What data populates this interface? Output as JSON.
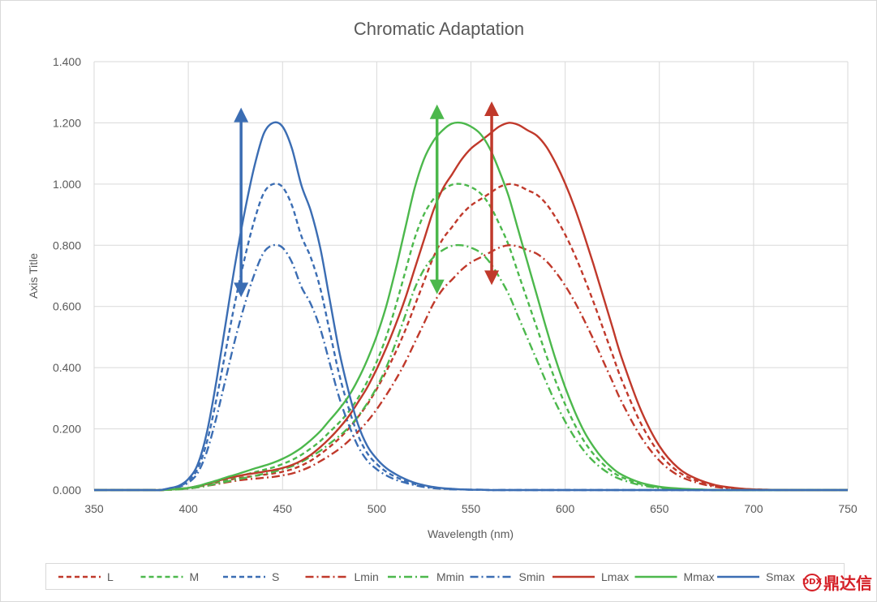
{
  "chart_data": {
    "type": "line",
    "title": "Chromatic Adaptation",
    "xlabel": "Wavelength (nm)",
    "ylabel": "Axis Title",
    "xlim": [
      350,
      750
    ],
    "ylim": [
      0,
      1.4
    ],
    "x_ticks": [
      "350",
      "400",
      "450",
      "500",
      "550",
      "600",
      "650",
      "700",
      "750"
    ],
    "y_ticks": [
      "0.000",
      "0.200",
      "0.400",
      "0.600",
      "0.800",
      "1.000",
      "1.200",
      "1.400"
    ],
    "grid": true,
    "legend_position": "bottom",
    "x": [
      350,
      360,
      370,
      380,
      385,
      390,
      395,
      400,
      405,
      410,
      415,
      420,
      425,
      430,
      435,
      440,
      445,
      450,
      455,
      460,
      465,
      470,
      475,
      480,
      485,
      490,
      495,
      500,
      505,
      510,
      515,
      520,
      525,
      530,
      535,
      540,
      545,
      550,
      555,
      560,
      565,
      570,
      575,
      580,
      585,
      590,
      595,
      600,
      605,
      610,
      615,
      620,
      625,
      630,
      640,
      650,
      660,
      670,
      680,
      690,
      700,
      720,
      750
    ],
    "series": [
      {
        "name": "L",
        "color": "#c0392b",
        "dash": "dash",
        "values": [
          0,
          0,
          0,
          0,
          0,
          0.001,
          0.003,
          0.006,
          0.011,
          0.017,
          0.024,
          0.031,
          0.037,
          0.042,
          0.046,
          0.05,
          0.054,
          0.06,
          0.068,
          0.08,
          0.096,
          0.117,
          0.141,
          0.168,
          0.2,
          0.238,
          0.28,
          0.33,
          0.387,
          0.45,
          0.52,
          0.6,
          0.68,
          0.76,
          0.82,
          0.86,
          0.9,
          0.93,
          0.95,
          0.97,
          0.99,
          1.0,
          0.995,
          0.98,
          0.965,
          0.935,
          0.89,
          0.835,
          0.77,
          0.695,
          0.615,
          0.53,
          0.445,
          0.36,
          0.22,
          0.12,
          0.06,
          0.03,
          0.013,
          0.006,
          0.002,
          0,
          0
        ]
      },
      {
        "name": "M",
        "color": "#4cb84c",
        "dash": "dash",
        "values": [
          0,
          0,
          0,
          0,
          0,
          0.001,
          0.003,
          0.006,
          0.011,
          0.018,
          0.026,
          0.034,
          0.042,
          0.05,
          0.058,
          0.066,
          0.074,
          0.085,
          0.098,
          0.115,
          0.136,
          0.16,
          0.19,
          0.22,
          0.255,
          0.3,
          0.355,
          0.42,
          0.5,
          0.6,
          0.71,
          0.82,
          0.9,
          0.95,
          0.98,
          0.998,
          1.0,
          0.99,
          0.97,
          0.93,
          0.87,
          0.8,
          0.71,
          0.62,
          0.53,
          0.44,
          0.355,
          0.28,
          0.215,
          0.16,
          0.118,
          0.085,
          0.06,
          0.042,
          0.02,
          0.009,
          0.004,
          0.002,
          0,
          0,
          0,
          0,
          0
        ]
      },
      {
        "name": "S",
        "color": "#3b6db3",
        "dash": "dash",
        "values": [
          0,
          0,
          0,
          0,
          0,
          0.005,
          0.012,
          0.03,
          0.07,
          0.16,
          0.3,
          0.46,
          0.62,
          0.76,
          0.88,
          0.97,
          1.0,
          0.99,
          0.93,
          0.83,
          0.76,
          0.66,
          0.52,
          0.38,
          0.27,
          0.18,
          0.12,
          0.085,
          0.06,
          0.043,
          0.03,
          0.02,
          0.013,
          0.008,
          0.005,
          0.003,
          0.002,
          0.001,
          0.001,
          0,
          0,
          0,
          0,
          0,
          0,
          0,
          0,
          0,
          0,
          0,
          0,
          0,
          0,
          0,
          0,
          0,
          0,
          0,
          0,
          0,
          0,
          0,
          0
        ]
      },
      {
        "name": "Lmin",
        "color": "#c0392b",
        "dash": "dashdot",
        "values": [
          0,
          0,
          0,
          0,
          0,
          0.001,
          0.003,
          0.005,
          0.009,
          0.014,
          0.019,
          0.025,
          0.03,
          0.034,
          0.037,
          0.04,
          0.043,
          0.048,
          0.054,
          0.064,
          0.077,
          0.094,
          0.113,
          0.134,
          0.16,
          0.19,
          0.224,
          0.264,
          0.31,
          0.36,
          0.416,
          0.48,
          0.544,
          0.608,
          0.656,
          0.688,
          0.72,
          0.744,
          0.76,
          0.776,
          0.792,
          0.8,
          0.796,
          0.784,
          0.772,
          0.748,
          0.712,
          0.668,
          0.616,
          0.556,
          0.492,
          0.424,
          0.356,
          0.288,
          0.176,
          0.096,
          0.048,
          0.024,
          0.01,
          0.005,
          0.002,
          0,
          0
        ]
      },
      {
        "name": "Mmin",
        "color": "#4cb84c",
        "dash": "dashdot",
        "values": [
          0,
          0,
          0,
          0,
          0,
          0.001,
          0.002,
          0.005,
          0.009,
          0.014,
          0.021,
          0.027,
          0.034,
          0.04,
          0.046,
          0.053,
          0.059,
          0.068,
          0.078,
          0.092,
          0.109,
          0.128,
          0.152,
          0.176,
          0.204,
          0.24,
          0.284,
          0.336,
          0.4,
          0.48,
          0.568,
          0.656,
          0.72,
          0.76,
          0.784,
          0.798,
          0.8,
          0.792,
          0.776,
          0.744,
          0.696,
          0.64,
          0.568,
          0.496,
          0.424,
          0.352,
          0.284,
          0.224,
          0.172,
          0.128,
          0.094,
          0.068,
          0.048,
          0.034,
          0.016,
          0.007,
          0.003,
          0.002,
          0,
          0,
          0,
          0,
          0
        ]
      },
      {
        "name": "Smin",
        "color": "#3b6db3",
        "dash": "dashdot",
        "values": [
          0,
          0,
          0,
          0,
          0,
          0.004,
          0.01,
          0.024,
          0.056,
          0.128,
          0.24,
          0.368,
          0.496,
          0.608,
          0.704,
          0.776,
          0.8,
          0.792,
          0.744,
          0.664,
          0.608,
          0.528,
          0.416,
          0.304,
          0.216,
          0.144,
          0.096,
          0.068,
          0.048,
          0.034,
          0.024,
          0.016,
          0.01,
          0.006,
          0.004,
          0.002,
          0.002,
          0.001,
          0.001,
          0,
          0,
          0,
          0,
          0,
          0,
          0,
          0,
          0,
          0,
          0,
          0,
          0,
          0,
          0,
          0,
          0,
          0,
          0,
          0,
          0,
          0,
          0,
          0
        ]
      },
      {
        "name": "Lmax",
        "color": "#c0392b",
        "dash": "solid",
        "values": [
          0,
          0,
          0,
          0,
          0,
          0.001,
          0.004,
          0.007,
          0.013,
          0.02,
          0.029,
          0.037,
          0.044,
          0.05,
          0.055,
          0.06,
          0.065,
          0.072,
          0.082,
          0.096,
          0.115,
          0.14,
          0.169,
          0.202,
          0.24,
          0.286,
          0.336,
          0.396,
          0.464,
          0.54,
          0.624,
          0.72,
          0.816,
          0.912,
          0.984,
          1.032,
          1.08,
          1.116,
          1.14,
          1.164,
          1.188,
          1.2,
          1.194,
          1.176,
          1.158,
          1.122,
          1.068,
          1.002,
          0.924,
          0.834,
          0.738,
          0.636,
          0.534,
          0.432,
          0.264,
          0.144,
          0.072,
          0.036,
          0.016,
          0.007,
          0.002,
          0,
          0
        ]
      },
      {
        "name": "Mmax",
        "color": "#4cb84c",
        "dash": "solid",
        "values": [
          0,
          0,
          0,
          0,
          0,
          0.001,
          0.004,
          0.007,
          0.013,
          0.022,
          0.031,
          0.041,
          0.05,
          0.06,
          0.07,
          0.079,
          0.089,
          0.102,
          0.118,
          0.138,
          0.163,
          0.192,
          0.228,
          0.264,
          0.306,
          0.36,
          0.426,
          0.504,
          0.6,
          0.72,
          0.852,
          0.984,
          1.08,
          1.14,
          1.176,
          1.198,
          1.2,
          1.188,
          1.164,
          1.116,
          1.044,
          0.96,
          0.852,
          0.744,
          0.636,
          0.528,
          0.426,
          0.336,
          0.258,
          0.192,
          0.142,
          0.102,
          0.072,
          0.05,
          0.024,
          0.011,
          0.005,
          0.002,
          0,
          0,
          0,
          0,
          0
        ]
      },
      {
        "name": "Smax",
        "color": "#3b6db3",
        "dash": "solid",
        "values": [
          0,
          0,
          0,
          0,
          0,
          0.006,
          0.014,
          0.036,
          0.084,
          0.192,
          0.36,
          0.552,
          0.744,
          0.912,
          1.056,
          1.164,
          1.2,
          1.188,
          1.116,
          0.996,
          0.912,
          0.792,
          0.624,
          0.456,
          0.324,
          0.216,
          0.144,
          0.102,
          0.072,
          0.052,
          0.036,
          0.024,
          0.016,
          0.01,
          0.006,
          0.004,
          0.002,
          0.001,
          0.001,
          0,
          0,
          0,
          0,
          0,
          0,
          0,
          0,
          0,
          0,
          0,
          0,
          0,
          0,
          0,
          0,
          0,
          0,
          0,
          0,
          0,
          0,
          0,
          0
        ]
      }
    ],
    "arrows": [
      {
        "series_color": "#3b6db3",
        "x": 428,
        "y_top": 1.25,
        "y_bottom": 0.63
      },
      {
        "series_color": "#4cb84c",
        "x": 532,
        "y_top": 1.26,
        "y_bottom": 0.64
      },
      {
        "series_color": "#c0392b",
        "x": 561,
        "y_top": 1.27,
        "y_bottom": 0.67
      }
    ]
  },
  "watermark_text": "鼎达信",
  "watermark_logo": "DDX"
}
